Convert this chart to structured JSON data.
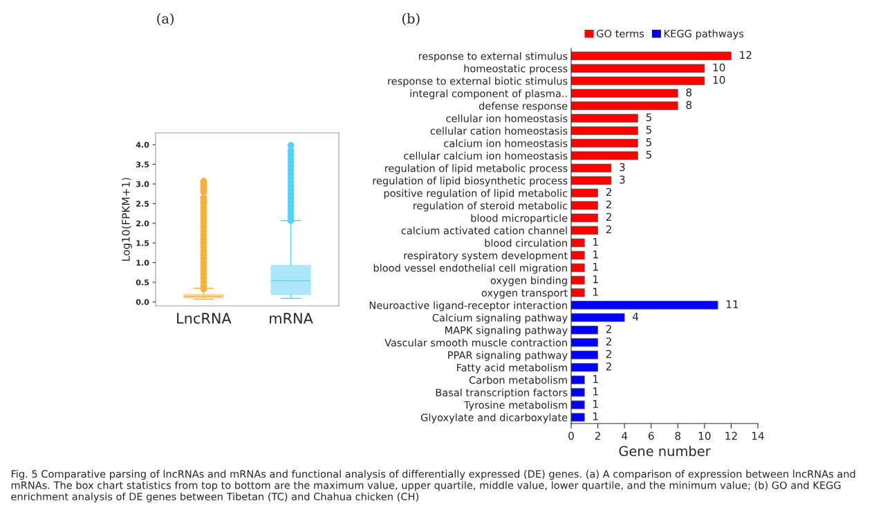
{
  "chart_data": [
    {
      "type": "box",
      "title": "(a)",
      "ylabel": "Log10(FPKM+1)",
      "categories": [
        "LncRNA",
        "mRNA"
      ],
      "colors": [
        "#f5b041",
        "#5bd0f5"
      ],
      "boxes": [
        {
          "low": 0.07,
          "q1": 0.1,
          "median": 0.14,
          "q3": 0.19,
          "high": 0.35,
          "outliers": [
            0.33,
            0.4,
            0.5,
            0.6,
            0.7,
            0.8,
            0.9,
            1.0,
            1.1,
            1.2,
            1.3,
            1.4,
            1.5,
            1.6,
            1.7,
            1.8,
            1.9,
            2.0,
            2.1,
            2.2,
            2.3,
            2.4,
            2.5,
            2.57,
            2.65,
            2.8,
            2.85,
            2.9,
            2.95,
            3.0,
            3.07
          ]
        },
        {
          "low": 0.09,
          "q1": 0.19,
          "median": 0.54,
          "q3": 0.93,
          "high": 2.07,
          "outliers": [
            2.07,
            2.15,
            2.25,
            2.35,
            2.45,
            2.55,
            2.65,
            2.75,
            2.85,
            2.95,
            3.05,
            3.15,
            3.25,
            3.35,
            3.45,
            3.55,
            3.65,
            3.75,
            3.85,
            3.98
          ]
        }
      ],
      "ylim": [
        -0.1,
        4.3
      ],
      "yticks": [
        {
          "value": 0,
          "label": "0.0"
        },
        {
          "value": 0.5,
          "label": "0.5"
        },
        {
          "value": 1,
          "label": "1.0"
        },
        {
          "value": 1.5,
          "label": "1.5"
        },
        {
          "value": 2,
          "label": "2.0"
        },
        {
          "value": 2.5,
          "label": "2.5"
        },
        {
          "value": 3,
          "label": "3.0"
        },
        {
          "value": 3.5,
          "label": "3.5"
        },
        {
          "value": 4,
          "label": "4.0"
        }
      ],
      "grid": false
    },
    {
      "type": "bar",
      "orientation": "horizontal",
      "title": "(b)",
      "xlabel": "Gene number",
      "categories": [
        "response to external stimulus",
        "homeostatic process",
        "response to external biotic stimulus",
        "integral component of plasma..",
        "defense response",
        "cellular ion homeostasis",
        "cellular cation homeostasis",
        "calcium ion homeostasis",
        "cellular calcium ion homeostasis",
        "regulation of lipid metabolic process",
        "regulation of lipid biosynthetic process",
        "positive regulation of lipid metabolic",
        "regulation of steroid metabolic",
        "blood microparticle",
        "calcium activated cation channel",
        "blood circulation",
        "respiratory system development",
        "blood vessel endothelial cell migration",
        "oxygen binding",
        "oxygen transport",
        "Neuroactive ligand-receptor interaction",
        "Calcium signaling pathway",
        "MAPK signaling pathway",
        "Vascular smooth muscle contraction",
        "PPAR signaling pathway",
        "Fatty acid metabolism",
        "Carbon metabolism",
        "Basal transcription factors",
        "Tyrosine metabolism",
        "Glyoxylate and dicarboxylate"
      ],
      "series": [
        {
          "name": "GO terms",
          "color": "#ff0000",
          "values": [
            12,
            10,
            10,
            8,
            8,
            5,
            5,
            5,
            5,
            3,
            3,
            2,
            2,
            2,
            2,
            1,
            1,
            1,
            1,
            1,
            null,
            null,
            null,
            null,
            null,
            null,
            null,
            null,
            null,
            null
          ]
        },
        {
          "name": "KEGG pathways",
          "color": "#0000ff",
          "values": [
            null,
            null,
            null,
            null,
            null,
            null,
            null,
            null,
            null,
            null,
            null,
            null,
            null,
            null,
            null,
            null,
            null,
            null,
            null,
            null,
            11,
            4,
            2,
            2,
            2,
            2,
            1,
            1,
            1,
            1
          ]
        }
      ],
      "xlim": [
        0,
        14
      ],
      "xticks": [
        0,
        2,
        4,
        6,
        8,
        10,
        12,
        14
      ],
      "data_labels": true,
      "legend": "top",
      "grid": false,
      "annotations": [
        "Fig. 5 Comparative parsing of lncRNAs and mRNAs and functional analysis of differentially expressed (DE) genes. (a) A comparison of expression between lncRNAs and mRNAs. The box chart statistics from top to bottom are the maximum value, upper quartile, middle value, lower quartile, and the minimum value; (b) GO and KEGG enrichment analysis of DE genes between Tibetan (TC) and Chahua chicken (CH)"
      ]
    }
  ]
}
